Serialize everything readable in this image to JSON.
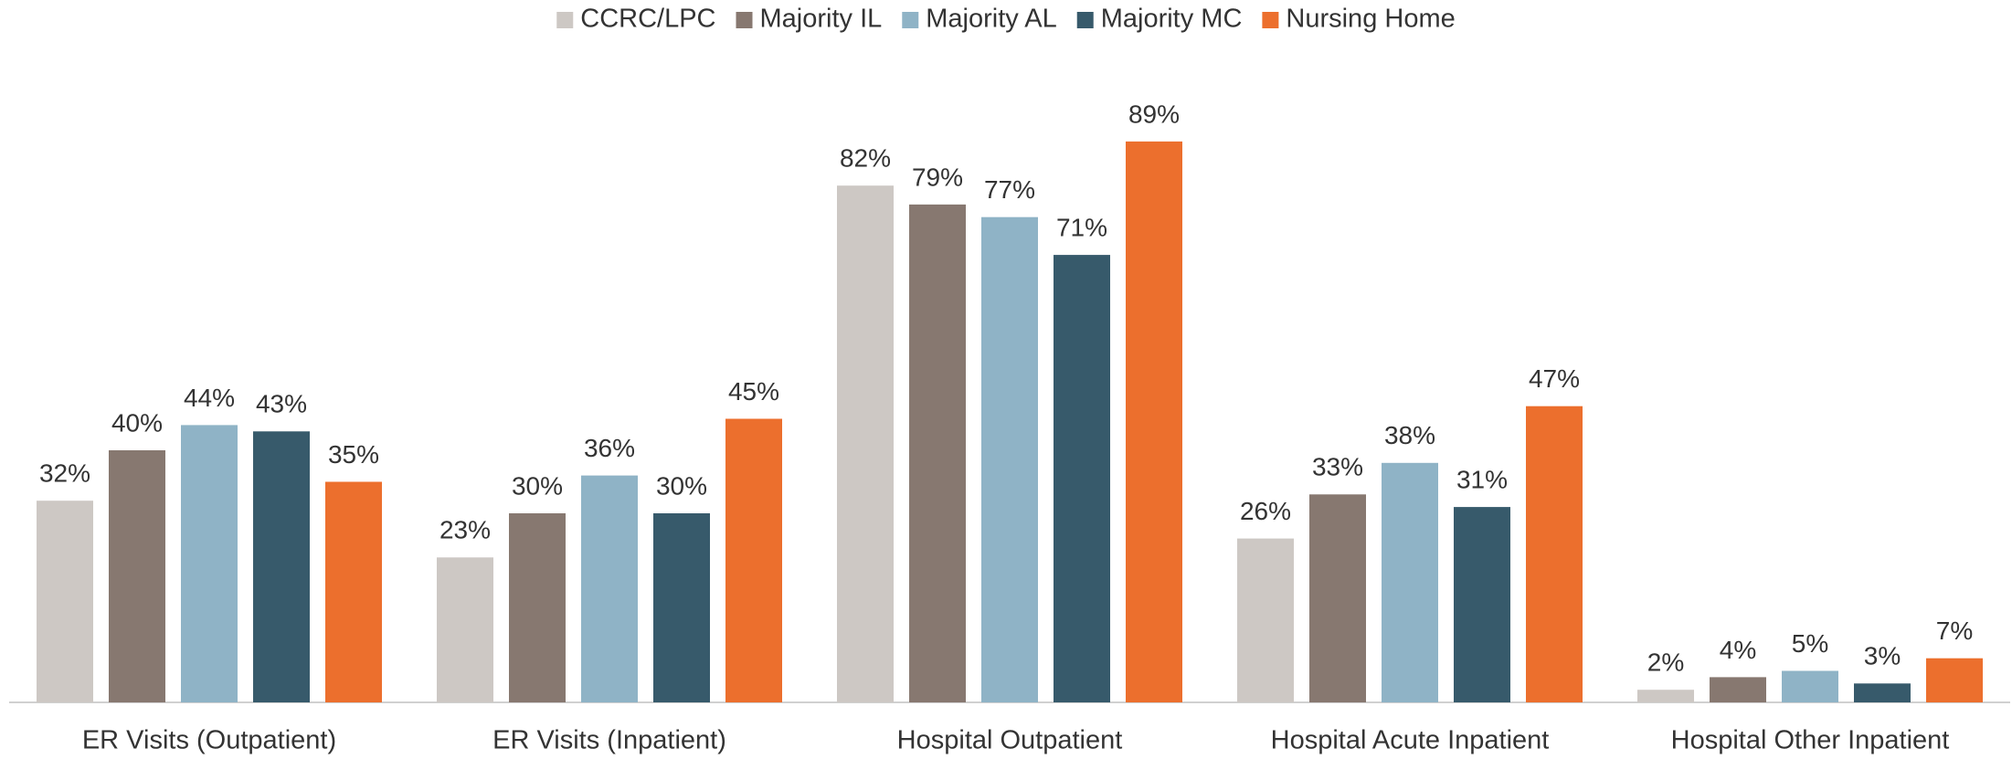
{
  "chart_data": {
    "type": "bar",
    "categories": [
      "ER Visits (Outpatient)",
      "ER Visits (Inpatient)",
      "Hospital Outpatient",
      "Hospital Acute Inpatient",
      "Hospital Other Inpatient"
    ],
    "series": [
      {
        "name": "CCRC/LPC",
        "color": "#cdc8c4",
        "values": [
          32,
          23,
          82,
          26,
          2
        ],
        "value_labels": [
          "32%",
          "23%",
          "82%",
          "26%",
          "2%"
        ]
      },
      {
        "name": "Majority IL",
        "color": "#877870",
        "values": [
          40,
          30,
          79,
          33,
          4
        ],
        "value_labels": [
          "40%",
          "30%",
          "79%",
          "33%",
          "4%"
        ]
      },
      {
        "name": "Majority AL",
        "color": "#8fb3c6",
        "values": [
          44,
          36,
          77,
          38,
          5
        ],
        "value_labels": [
          "44%",
          "36%",
          "77%",
          "38%",
          "5%"
        ]
      },
      {
        "name": "Majority MC",
        "color": "#375a6b",
        "values": [
          43,
          30,
          71,
          31,
          3
        ],
        "value_labels": [
          "43%",
          "30%",
          "71%",
          "31%",
          "3%"
        ]
      },
      {
        "name": "Nursing Home",
        "color": "#ec6f2d",
        "values": [
          35,
          45,
          89,
          47,
          7
        ],
        "value_labels": [
          "35%",
          "45%",
          "89%",
          "47%",
          "7%"
        ]
      }
    ],
    "ylim": [
      0,
      100
    ]
  }
}
